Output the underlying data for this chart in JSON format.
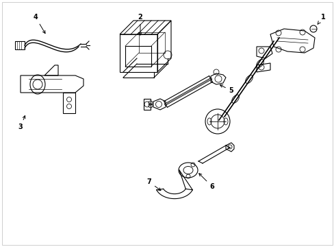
{
  "background_color": "#ffffff",
  "line_color": "#000000",
  "line_width": 0.8,
  "figure_width": 4.89,
  "figure_height": 3.6,
  "dpi": 100
}
